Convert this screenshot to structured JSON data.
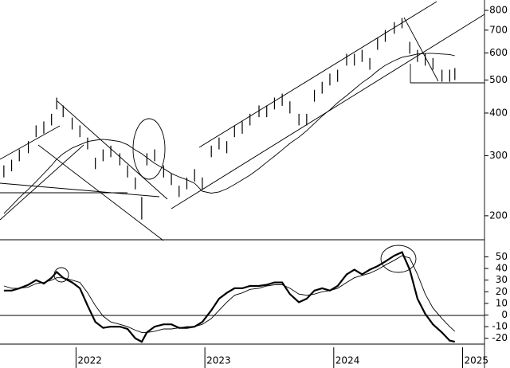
{
  "chart_data": [
    {
      "type": "range-bar",
      "x": [
        2021.44,
        2021.5,
        2021.56,
        2021.63,
        2021.69,
        2021.75,
        2021.81,
        2021.85,
        2021.9,
        2021.97,
        2022.03,
        2022.09,
        2022.15,
        2022.21,
        2022.27,
        2022.34,
        2022.4,
        2022.46,
        2022.51,
        2022.55,
        2022.61,
        2022.68,
        2022.74,
        2022.8,
        2022.86,
        2022.92,
        2022.98,
        2023.05,
        2023.11,
        2023.17,
        2023.23,
        2023.29,
        2023.35,
        2023.42,
        2023.48,
        2023.54,
        2023.6,
        2023.66,
        2023.73,
        2023.79,
        2023.85,
        2023.91,
        2023.97,
        2024.03,
        2024.1,
        2024.16,
        2024.22,
        2024.28,
        2024.34,
        2024.4,
        2024.47,
        2024.53,
        2024.59,
        2024.65,
        2024.71,
        2024.77,
        2024.84,
        2024.9,
        2024.94
      ],
      "high": [
        281,
        292,
        313,
        331,
        368,
        378,
        398,
        444,
        421,
        388,
        368,
        339,
        296,
        313,
        321,
        305,
        281,
        259,
        227,
        305,
        313,
        281,
        266,
        245,
        259,
        274,
        259,
        321,
        339,
        331,
        368,
        378,
        398,
        421,
        421,
        444,
        456,
        433,
        398,
        398,
        468,
        494,
        522,
        536,
        597,
        597,
        613,
        580,
        665,
        701,
        739,
        760,
        647,
        613,
        597,
        580,
        536,
        536,
        542
      ],
      "low": [
        259,
        270,
        289,
        305,
        340,
        348,
        368,
        410,
        389,
        358,
        340,
        313,
        274,
        289,
        297,
        281,
        259,
        239,
        195,
        281,
        289,
        259,
        246,
        227,
        239,
        252,
        239,
        297,
        313,
        305,
        340,
        348,
        368,
        389,
        389,
        410,
        420,
        399,
        368,
        368,
        432,
        456,
        482,
        494,
        551,
        551,
        565,
        536,
        613,
        647,
        683,
        709,
        597,
        565,
        551,
        536,
        494,
        494,
        500
      ],
      "moving_average": [
        203,
        214,
        226,
        239,
        252,
        266,
        281,
        293,
        304,
        316,
        323,
        330,
        333,
        335,
        333,
        330,
        323,
        312,
        304,
        296,
        285,
        275,
        266,
        260,
        255,
        249,
        236,
        233,
        235,
        240,
        247,
        255,
        263,
        275,
        287,
        299,
        312,
        326,
        340,
        355,
        373,
        392,
        409,
        429,
        450,
        470,
        491,
        509,
        532,
        552,
        570,
        583,
        589,
        596,
        598,
        598,
        596,
        594,
        589
      ],
      "color": "#000000",
      "log_scale": true,
      "xlim": [
        2021.41,
        2025.17
      ],
      "ylim": [
        171,
        858
      ],
      "yticks": [
        200,
        300,
        400,
        500,
        600,
        700,
        800
      ]
    },
    {
      "type": "line",
      "x": [
        2021.44,
        2021.5,
        2021.56,
        2021.63,
        2021.69,
        2021.75,
        2021.81,
        2021.85,
        2021.9,
        2021.97,
        2022.03,
        2022.09,
        2022.15,
        2022.21,
        2022.27,
        2022.34,
        2022.4,
        2022.46,
        2022.51,
        2022.55,
        2022.61,
        2022.68,
        2022.74,
        2022.8,
        2022.86,
        2022.92,
        2022.98,
        2023.05,
        2023.11,
        2023.17,
        2023.23,
        2023.29,
        2023.35,
        2023.42,
        2023.48,
        2023.54,
        2023.6,
        2023.66,
        2023.73,
        2023.79,
        2023.85,
        2023.91,
        2023.97,
        2024.03,
        2024.1,
        2024.16,
        2024.22,
        2024.28,
        2024.34,
        2024.4,
        2024.47,
        2024.53,
        2024.59,
        2024.65,
        2024.71,
        2024.77,
        2024.84,
        2024.9,
        2024.94
      ],
      "series": [
        {
          "color": "#000000",
          "width": 2.2,
          "values": [
            21,
            21,
            23,
            26,
            30,
            27,
            32,
            37,
            32,
            28,
            23,
            8,
            -6,
            -11,
            -10,
            -10,
            -12,
            -20,
            -23,
            -15,
            -10,
            -8,
            -8,
            -11,
            -11,
            -10,
            -6,
            4,
            14,
            19,
            23,
            23,
            25,
            25,
            26,
            28,
            28,
            18,
            11,
            14,
            21,
            23,
            21,
            25,
            35,
            39,
            35,
            39,
            42,
            46,
            51,
            54,
            39,
            14,
            1,
            -8,
            -15,
            -22,
            -23
          ]
        },
        {
          "color": "#000000",
          "width": 0.9,
          "values": [
            25,
            23,
            23,
            24,
            27,
            28,
            30,
            32,
            32,
            30,
            28,
            19,
            8,
            -1,
            -6,
            -8,
            -10,
            -13,
            -15,
            -15,
            -14,
            -12,
            -12,
            -11,
            -10,
            -10,
            -8,
            -3,
            4,
            11,
            17,
            19,
            22,
            23,
            25,
            26,
            26,
            23,
            18,
            17,
            18,
            20,
            21,
            23,
            28,
            32,
            34,
            36,
            39,
            43,
            47,
            51,
            49,
            35,
            18,
            6,
            -3,
            -10,
            -14
          ]
        }
      ],
      "xlim": [
        2021.41,
        2025.17
      ],
      "xticks": [
        2022,
        2023,
        2024,
        2025
      ],
      "ylim": [
        -25,
        64
      ],
      "yticks": [
        50,
        40,
        30,
        20,
        10,
        0,
        -10,
        -20
      ]
    }
  ]
}
